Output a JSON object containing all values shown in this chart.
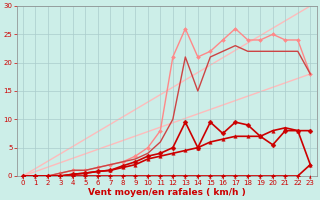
{
  "title": "",
  "xlabel": "Vent moyen/en rafales ( km/h )",
  "bg_color": "#cceee8",
  "grid_color": "#aacccc",
  "x_ticks": [
    0,
    1,
    2,
    3,
    4,
    5,
    6,
    7,
    8,
    9,
    10,
    11,
    12,
    13,
    14,
    15,
    16,
    17,
    18,
    19,
    20,
    21,
    22,
    23
  ],
  "y_ticks": [
    0,
    5,
    10,
    15,
    20,
    25,
    30
  ],
  "xlim": [
    -0.5,
    23.5
  ],
  "ylim": [
    0,
    30
  ],
  "lines": [
    {
      "x": [
        0,
        23
      ],
      "y": [
        0,
        18
      ],
      "color": "#ffbbbb",
      "lw": 1.0,
      "marker": null,
      "ms": 0,
      "zorder": 1
    },
    {
      "x": [
        0,
        23
      ],
      "y": [
        0,
        30
      ],
      "color": "#ffbbbb",
      "lw": 1.0,
      "marker": null,
      "ms": 0,
      "zorder": 1
    },
    {
      "x": [
        0,
        1,
        2,
        3,
        4,
        5,
        6,
        7,
        8,
        9,
        10,
        11,
        12,
        13,
        14,
        15,
        16,
        17,
        18,
        19,
        20,
        21,
        22,
        23
      ],
      "y": [
        0,
        0,
        0,
        0.5,
        1,
        1,
        1.5,
        2,
        2.5,
        3.5,
        5,
        8,
        21,
        26,
        21,
        22,
        24,
        26,
        24,
        24,
        25,
        24,
        24,
        18
      ],
      "color": "#ff8888",
      "lw": 1.0,
      "marker": "D",
      "ms": 2.0,
      "zorder": 2
    },
    {
      "x": [
        0,
        1,
        2,
        3,
        4,
        5,
        6,
        7,
        8,
        9,
        10,
        11,
        12,
        13,
        14,
        15,
        16,
        17,
        18,
        19,
        20,
        21,
        22,
        23
      ],
      "y": [
        0,
        0,
        0,
        0.5,
        1,
        1,
        1.5,
        2,
        2.5,
        3,
        4,
        6,
        10,
        21,
        15,
        21,
        22,
        23,
        22,
        22,
        22,
        22,
        22,
        18
      ],
      "color": "#cc4444",
      "lw": 1.0,
      "marker": null,
      "ms": 0,
      "zorder": 2
    },
    {
      "x": [
        0,
        1,
        2,
        3,
        4,
        5,
        6,
        7,
        8,
        9,
        10,
        11,
        12,
        13,
        14,
        15,
        16,
        17,
        18,
        19,
        20,
        21,
        22,
        23
      ],
      "y": [
        0,
        0,
        0,
        0,
        0.3,
        0.5,
        0.8,
        1,
        1.5,
        2,
        3,
        3.5,
        4,
        4.5,
        5,
        6,
        6.5,
        7,
        7,
        7,
        8,
        8.5,
        8,
        2
      ],
      "color": "#cc0000",
      "lw": 1.2,
      "marker": "^",
      "ms": 2.5,
      "zorder": 3
    },
    {
      "x": [
        0,
        1,
        2,
        3,
        4,
        5,
        6,
        7,
        8,
        9,
        10,
        11,
        12,
        13,
        14,
        15,
        16,
        17,
        18,
        19,
        20,
        21,
        22,
        23
      ],
      "y": [
        0,
        0,
        0,
        0,
        0.3,
        0.5,
        0.8,
        1,
        1.8,
        2.5,
        3.5,
        4,
        5,
        9.5,
        5,
        9.5,
        7.5,
        9.5,
        9,
        7,
        5.5,
        8,
        8,
        8
      ],
      "color": "#cc0000",
      "lw": 1.2,
      "marker": "D",
      "ms": 2.5,
      "zorder": 3
    },
    {
      "x": [
        0,
        1,
        2,
        3,
        4,
        5,
        6,
        7,
        8,
        9,
        10,
        11,
        12,
        13,
        14,
        15,
        16,
        17,
        18,
        19,
        20,
        21,
        22,
        23
      ],
      "y": [
        0,
        0,
        0,
        0,
        0,
        0,
        0,
        0,
        0,
        0,
        0,
        0,
        0,
        0,
        0,
        0,
        0,
        0,
        0,
        0,
        0,
        0,
        0,
        2
      ],
      "color": "#cc0000",
      "lw": 1.2,
      "marker": "D",
      "ms": 2.0,
      "zorder": 3
    }
  ],
  "xlabel_color": "#cc0000",
  "tick_color": "#cc0000",
  "label_fontsize": 6.5,
  "tick_fontsize": 5.0,
  "figsize": [
    3.2,
    2.0
  ],
  "dpi": 100
}
